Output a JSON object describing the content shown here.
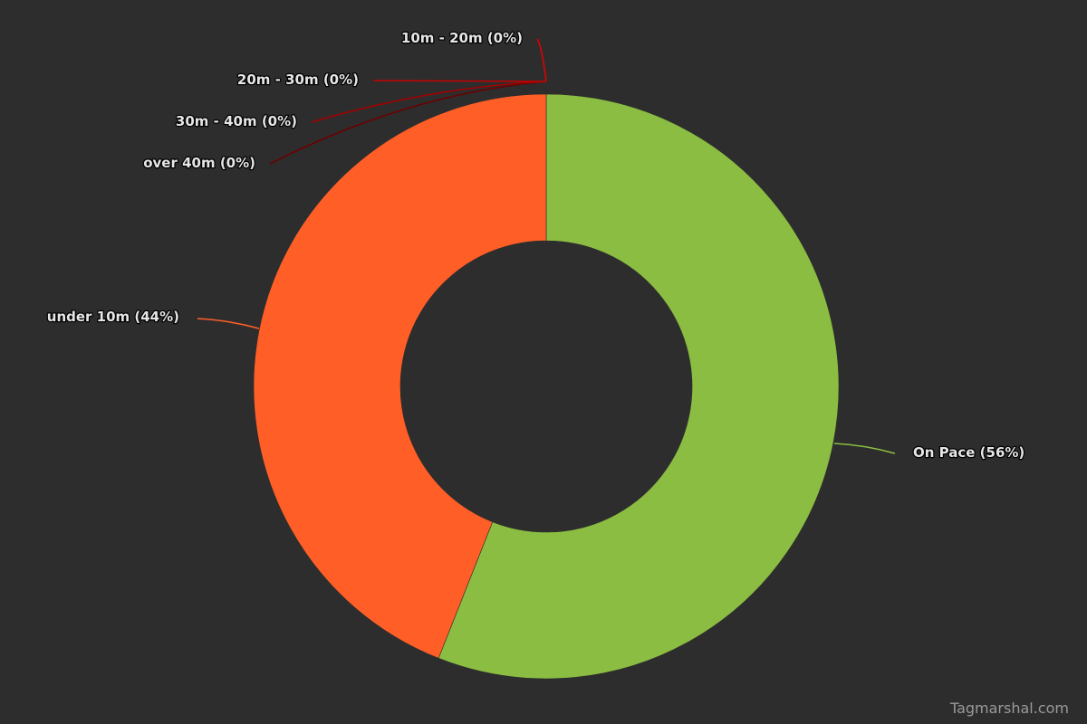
{
  "chart_data": {
    "type": "pie",
    "variant": "donut",
    "title": "",
    "legend": "none",
    "slices": [
      {
        "label": "On Pace (56%)",
        "name": "On Pace",
        "percent": 56,
        "color": "#8bbd42"
      },
      {
        "label": "under 10m (44%)",
        "name": "under 10m",
        "percent": 44,
        "color": "#ff5e27"
      },
      {
        "label": "over 40m (0%)",
        "name": "over 40m",
        "percent": 0,
        "color": "#6b0000"
      },
      {
        "label": "30m - 40m (0%)",
        "name": "30m - 40m",
        "percent": 0,
        "color": "#a30000"
      },
      {
        "label": "20m - 30m (0%)",
        "name": "20m - 30m",
        "percent": 0,
        "color": "#c80000"
      },
      {
        "label": "10m - 20m (0%)",
        "name": "10m - 20m",
        "percent": 0,
        "color": "#e00000"
      }
    ]
  },
  "credit": "Tagmarshal.com",
  "colors": {
    "background": "#2d2d2d",
    "label_text": "#e6e6e6"
  }
}
